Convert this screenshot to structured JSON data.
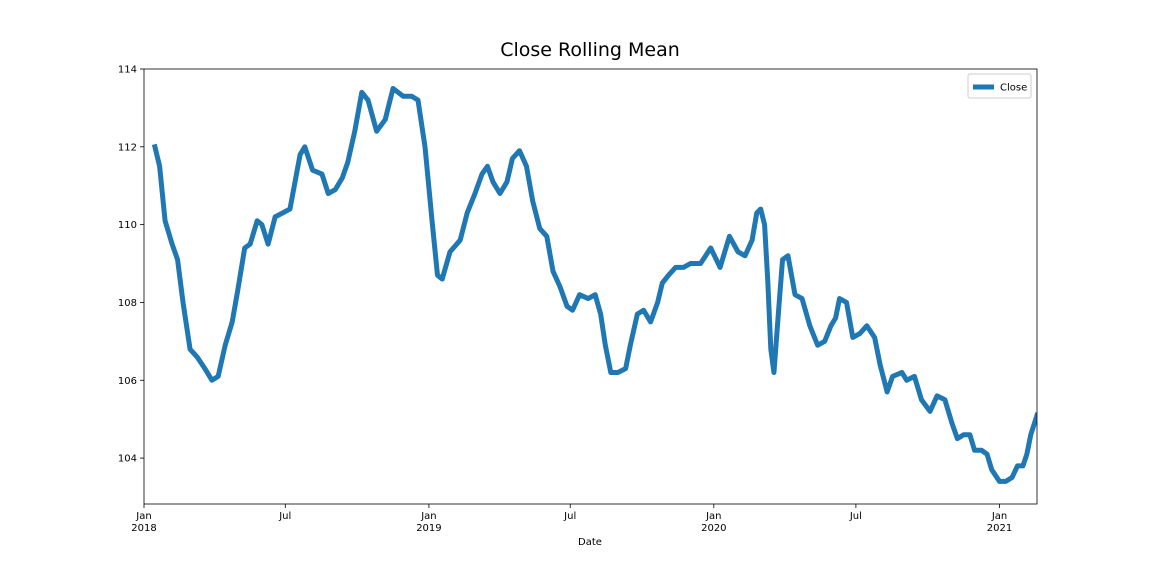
{
  "chart_data": {
    "type": "line",
    "title": "Close Rolling Mean",
    "x_label": "Date",
    "x": [
      "2018-01-15",
      "2018-01-21",
      "2018-01-28",
      "2018-02-06",
      "2018-02-13",
      "2018-02-20",
      "2018-03-01",
      "2018-03-10",
      "2018-03-20",
      "2018-03-29",
      "2018-04-06",
      "2018-04-15",
      "2018-04-24",
      "2018-05-01",
      "2018-05-10",
      "2018-05-17",
      "2018-05-26",
      "2018-06-01",
      "2018-06-09",
      "2018-06-18",
      "2018-07-07",
      "2018-07-20",
      "2018-07-26",
      "2018-08-05",
      "2018-08-17",
      "2018-08-25",
      "2018-09-03",
      "2018-09-12",
      "2018-09-19",
      "2018-09-28",
      "2018-10-07",
      "2018-10-15",
      "2018-10-26",
      "2018-11-06",
      "2018-11-16",
      "2018-11-29",
      "2018-12-10",
      "2018-12-18",
      "2018-12-27",
      "2019-01-05",
      "2019-01-12",
      "2019-01-18",
      "2019-01-28",
      "2019-02-10",
      "2019-02-19",
      "2019-03-01",
      "2019-03-10",
      "2019-03-17",
      "2019-03-24",
      "2019-04-02",
      "2019-04-11",
      "2019-04-18",
      "2019-04-27",
      "2019-05-06",
      "2019-05-14",
      "2019-05-23",
      "2019-06-01",
      "2019-06-09",
      "2019-06-18",
      "2019-06-27",
      "2019-07-04",
      "2019-07-13",
      "2019-07-24",
      "2019-08-02",
      "2019-08-09",
      "2019-08-15",
      "2019-08-22",
      "2019-08-31",
      "2019-09-10",
      "2019-09-16",
      "2019-09-25",
      "2019-10-03",
      "2019-10-12",
      "2019-10-21",
      "2019-10-27",
      "2019-11-04",
      "2019-11-13",
      "2019-11-23",
      "2019-12-02",
      "2019-12-15",
      "2019-12-28",
      "2020-01-09",
      "2020-01-21",
      "2020-02-01",
      "2020-02-10",
      "2020-02-19",
      "2020-02-25",
      "2020-03-01",
      "2020-03-06",
      "2020-03-10",
      "2020-03-14",
      "2020-03-18",
      "2020-03-24",
      "2020-03-29",
      "2020-04-05",
      "2020-04-14",
      "2020-04-23",
      "2020-05-03",
      "2020-05-13",
      "2020-05-22",
      "2020-05-30",
      "2020-06-05",
      "2020-06-10",
      "2020-06-19",
      "2020-06-27",
      "2020-07-06",
      "2020-07-15",
      "2020-07-25",
      "2020-08-01",
      "2020-08-10",
      "2020-08-17",
      "2020-08-29",
      "2020-09-04",
      "2020-09-14",
      "2020-09-23",
      "2020-10-04",
      "2020-10-13",
      "2020-10-23",
      "2020-11-01",
      "2020-11-08",
      "2020-11-16",
      "2020-11-24",
      "2020-11-30",
      "2020-12-09",
      "2020-12-16",
      "2020-12-22",
      "2021-01-01",
      "2021-01-09",
      "2021-01-17",
      "2021-01-24",
      "2021-01-31",
      "2021-02-05",
      "2021-02-10",
      "2021-02-18"
    ],
    "series": [
      {
        "name": "Close",
        "color": "#1f77b4",
        "values": [
          112.0,
          111.5,
          110.1,
          109.5,
          109.1,
          108.0,
          106.8,
          106.6,
          106.3,
          106.0,
          106.1,
          106.9,
          107.5,
          108.3,
          109.4,
          109.5,
          110.1,
          110.0,
          109.5,
          110.2,
          110.4,
          111.8,
          112.0,
          111.4,
          111.3,
          110.8,
          110.9,
          111.2,
          111.6,
          112.4,
          113.4,
          113.2,
          112.4,
          112.7,
          113.5,
          113.3,
          113.3,
          113.2,
          112.0,
          110.1,
          108.7,
          108.6,
          109.3,
          109.6,
          110.3,
          110.8,
          111.3,
          111.5,
          111.1,
          110.8,
          111.1,
          111.7,
          111.9,
          111.5,
          110.6,
          109.9,
          109.7,
          108.8,
          108.4,
          107.9,
          107.8,
          108.2,
          108.1,
          108.2,
          107.7,
          106.9,
          106.2,
          106.2,
          106.3,
          106.9,
          107.7,
          107.8,
          107.5,
          108.0,
          108.5,
          108.7,
          108.9,
          108.9,
          109.0,
          109.0,
          109.4,
          108.9,
          109.7,
          109.3,
          109.2,
          109.6,
          110.3,
          110.4,
          110.0,
          108.6,
          106.8,
          106.2,
          107.8,
          109.1,
          109.2,
          108.2,
          108.1,
          107.4,
          106.9,
          107.0,
          107.4,
          107.6,
          108.1,
          108.0,
          107.1,
          107.2,
          107.4,
          107.1,
          106.4,
          105.7,
          106.1,
          106.2,
          106.0,
          106.1,
          105.5,
          105.2,
          105.6,
          105.5,
          104.9,
          104.5,
          104.6,
          104.6,
          104.2,
          104.2,
          104.1,
          103.7,
          103.4,
          103.4,
          103.5,
          103.8,
          103.8,
          104.1,
          104.6,
          105.1
        ]
      }
    ],
    "xlim": [
      "2018-01-01",
      "2021-02-18"
    ],
    "xticks": [
      {
        "value": "2018-01-01",
        "label": "Jan 2018"
      },
      {
        "value": "2018-07-01",
        "label": "Jul"
      },
      {
        "value": "2019-01-01",
        "label": "Jan 2019"
      },
      {
        "value": "2019-07-01",
        "label": "Jul"
      },
      {
        "value": "2020-01-01",
        "label": "Jan 2020"
      },
      {
        "value": "2020-07-01",
        "label": "Jul"
      },
      {
        "value": "2021-01-01",
        "label": "Jan 2021"
      }
    ],
    "ylim": [
      102.82,
      114
    ],
    "yticks": [
      104,
      106,
      108,
      110,
      112,
      114
    ],
    "legend": "upper right",
    "grid": false
  }
}
